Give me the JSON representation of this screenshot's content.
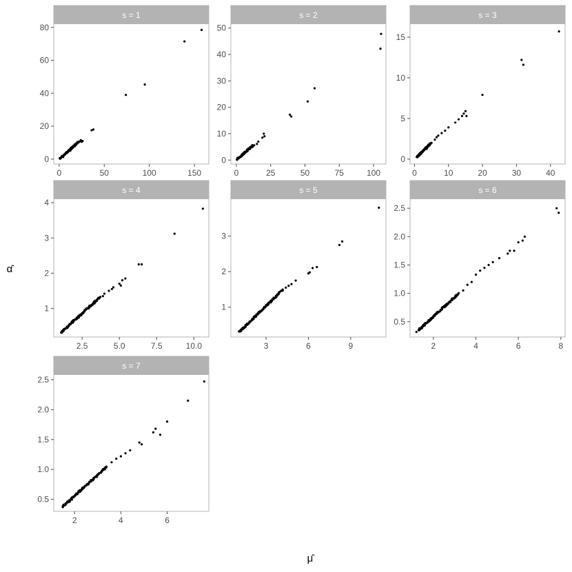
{
  "chart_data": {
    "type": "scatter",
    "xlabel": "μ̂",
    "ylabel": "α̂",
    "colors": {
      "point": "#000000",
      "strip": "#b3b3b3",
      "strip_text": "#ffffff",
      "frame": "#b3b3b3",
      "tick_text": "#4d4d4d"
    },
    "grid": false,
    "panels": [
      {
        "title": "s = 1",
        "xlim": [
          -6,
          166
        ],
        "ylim": [
          -3,
          82
        ],
        "xticks": [
          0,
          50,
          100,
          150
        ],
        "yticks": [
          0,
          20,
          40,
          60,
          80
        ],
        "cluster": {
          "x0": 1,
          "x1": 22,
          "y0": 0.3,
          "y1": 10.5,
          "n": 70
        },
        "points": [
          [
            2,
            0.8
          ],
          [
            4,
            1.5
          ],
          [
            6,
            2.6
          ],
          [
            8,
            3.6
          ],
          [
            9,
            4.2
          ],
          [
            10,
            5
          ],
          [
            11,
            5.6
          ],
          [
            12,
            6
          ],
          [
            13,
            6.8
          ],
          [
            14,
            7.2
          ],
          [
            15,
            7.6
          ],
          [
            16,
            8
          ],
          [
            17,
            8.5
          ],
          [
            18,
            8.8
          ],
          [
            20,
            9.5
          ],
          [
            22,
            10.3
          ],
          [
            23,
            10.8
          ],
          [
            24,
            11.5
          ],
          [
            25,
            10.5
          ],
          [
            26,
            11
          ],
          [
            36,
            17.5
          ],
          [
            38,
            18
          ],
          [
            74,
            39
          ],
          [
            95,
            45.3
          ],
          [
            139,
            71.5
          ],
          [
            158,
            78.5
          ]
        ]
      },
      {
        "title": "s = 2",
        "xlim": [
          -4,
          109
        ],
        "ylim": [
          -1.5,
          51.5
        ],
        "xticks": [
          0,
          25,
          50,
          75,
          100
        ],
        "yticks": [
          0,
          10,
          20,
          30,
          40,
          50
        ],
        "cluster": {
          "x0": 0.5,
          "x1": 12,
          "y0": 0.3,
          "y1": 5.5,
          "n": 60
        },
        "points": [
          [
            2,
            0.8
          ],
          [
            4,
            1.6
          ],
          [
            6,
            2.5
          ],
          [
            8,
            3.3
          ],
          [
            10,
            4.2
          ],
          [
            11,
            4.8
          ],
          [
            12,
            5.1
          ],
          [
            13,
            5.6
          ],
          [
            15,
            6.1
          ],
          [
            16,
            7
          ],
          [
            19,
            8.5
          ],
          [
            20,
            10
          ],
          [
            20.5,
            9
          ],
          [
            39,
            17.2
          ],
          [
            40,
            16.5
          ],
          [
            52,
            22.2
          ],
          [
            57,
            27.2
          ],
          [
            105,
            42.2
          ],
          [
            105.5,
            47.8
          ]
        ]
      },
      {
        "title": "s = 3",
        "xlim": [
          -1.3,
          44.3
        ],
        "ylim": [
          -0.6,
          16.6
        ],
        "xticks": [
          0,
          10,
          20,
          30,
          40
        ],
        "yticks": [
          0,
          5,
          10,
          15
        ],
        "cluster": {
          "x0": 0.8,
          "x1": 5,
          "y0": 0.3,
          "y1": 2,
          "n": 60
        },
        "points": [
          [
            3,
            1.2
          ],
          [
            4,
            1.6
          ],
          [
            5,
            2
          ],
          [
            6,
            2.4
          ],
          [
            6.5,
            2.7
          ],
          [
            7,
            2.9
          ],
          [
            8,
            3.2
          ],
          [
            9,
            3.5
          ],
          [
            10,
            3.9
          ],
          [
            12,
            4.5
          ],
          [
            13,
            4.9
          ],
          [
            14,
            5.3
          ],
          [
            14.5,
            5.6
          ],
          [
            15,
            5.9
          ],
          [
            15.3,
            5.3
          ],
          [
            20,
            7.9
          ],
          [
            31.5,
            12.2
          ],
          [
            32,
            11.6
          ],
          [
            42.5,
            15.7
          ]
        ]
      },
      {
        "title": "s = 4",
        "xlim": [
          0.6,
          11.0
        ],
        "ylim": [
          0.19,
          4.1
        ],
        "xticks": [
          2.5,
          5.0,
          7.5,
          10.0
        ],
        "yticks": [
          1,
          2,
          3,
          4
        ],
        "tick_labels": [
          "2.5",
          "5.0",
          "7.5",
          "10.0"
        ],
        "cluster": {
          "x0": 1.1,
          "x1": 3.7,
          "y0": 0.32,
          "y1": 1.32,
          "n": 120
        },
        "points": [
          [
            3.9,
            1.35
          ],
          [
            4,
            1.42
          ],
          [
            4.3,
            1.5
          ],
          [
            4.5,
            1.55
          ],
          [
            4.6,
            1.6
          ],
          [
            5,
            1.7
          ],
          [
            5.1,
            1.65
          ],
          [
            5.2,
            1.8
          ],
          [
            5.4,
            1.85
          ],
          [
            6.3,
            2.25
          ],
          [
            6.5,
            2.25
          ],
          [
            8.7,
            3.12
          ],
          [
            10.6,
            3.83
          ]
        ]
      },
      {
        "title": "s = 5",
        "xlim": [
          0.5,
          11.5
        ],
        "ylim": [
          0.16,
          4.04
        ],
        "xticks": [
          3,
          6,
          9
        ],
        "yticks": [
          1,
          2,
          3
        ],
        "cluster": {
          "x0": 1.1,
          "x1": 4.2,
          "y0": 0.3,
          "y1": 1.5,
          "n": 120
        },
        "points": [
          [
            4.4,
            1.55
          ],
          [
            4.6,
            1.6
          ],
          [
            4.8,
            1.65
          ],
          [
            5.1,
            1.75
          ],
          [
            6,
            1.95
          ],
          [
            6.1,
            1.98
          ],
          [
            6.3,
            2.1
          ],
          [
            6.6,
            2.13
          ],
          [
            8.2,
            2.75
          ],
          [
            8.4,
            2.85
          ],
          [
            11,
            3.8
          ]
        ]
      },
      {
        "title": "s = 6",
        "xlim": [
          0.9,
          8.2
        ],
        "ylim": [
          0.23,
          2.66
        ],
        "xticks": [
          2,
          4,
          6,
          8
        ],
        "yticks": [
          0.5,
          1.0,
          1.5,
          2.0,
          2.5
        ],
        "tick_labels_y": [
          "0.5",
          "1.0",
          "1.5",
          "2.0",
          "2.5"
        ],
        "cluster": {
          "x0": 1.3,
          "x1": 3.2,
          "y0": 0.35,
          "y1": 1.0,
          "n": 120
        },
        "points": [
          [
            1.2,
            0.32
          ],
          [
            3.4,
            1.05
          ],
          [
            3.6,
            1.15
          ],
          [
            3.8,
            1.2
          ],
          [
            4,
            1.33
          ],
          [
            4.2,
            1.4
          ],
          [
            4.4,
            1.45
          ],
          [
            4.6,
            1.5
          ],
          [
            4.8,
            1.55
          ],
          [
            5.1,
            1.62
          ],
          [
            5.5,
            1.7
          ],
          [
            5.6,
            1.75
          ],
          [
            5.8,
            1.75
          ],
          [
            6,
            1.9
          ],
          [
            6.2,
            1.93
          ],
          [
            6.3,
            2
          ],
          [
            7.8,
            2.5
          ],
          [
            7.9,
            2.42
          ]
        ]
      },
      {
        "title": "s = 7",
        "xlim": [
          1.1,
          7.8
        ],
        "ylim": [
          0.3,
          2.58
        ],
        "xticks": [
          2,
          4,
          6
        ],
        "yticks": [
          0.5,
          1.0,
          1.5,
          2.0,
          2.5
        ],
        "tick_labels_y": [
          "0.5",
          "1.0",
          "1.5",
          "2.0",
          "2.5"
        ],
        "cluster": {
          "x0": 1.5,
          "x1": 3.4,
          "y0": 0.38,
          "y1": 1.05,
          "n": 120
        },
        "points": [
          [
            3.6,
            1.12
          ],
          [
            3.8,
            1.18
          ],
          [
            4,
            1.22
          ],
          [
            4.2,
            1.27
          ],
          [
            4.4,
            1.32
          ],
          [
            4.8,
            1.45
          ],
          [
            4.9,
            1.42
          ],
          [
            5.4,
            1.62
          ],
          [
            5.5,
            1.68
          ],
          [
            5.7,
            1.58
          ],
          [
            6,
            1.8
          ],
          [
            6.9,
            2.15
          ],
          [
            7.6,
            2.47
          ]
        ]
      }
    ]
  }
}
